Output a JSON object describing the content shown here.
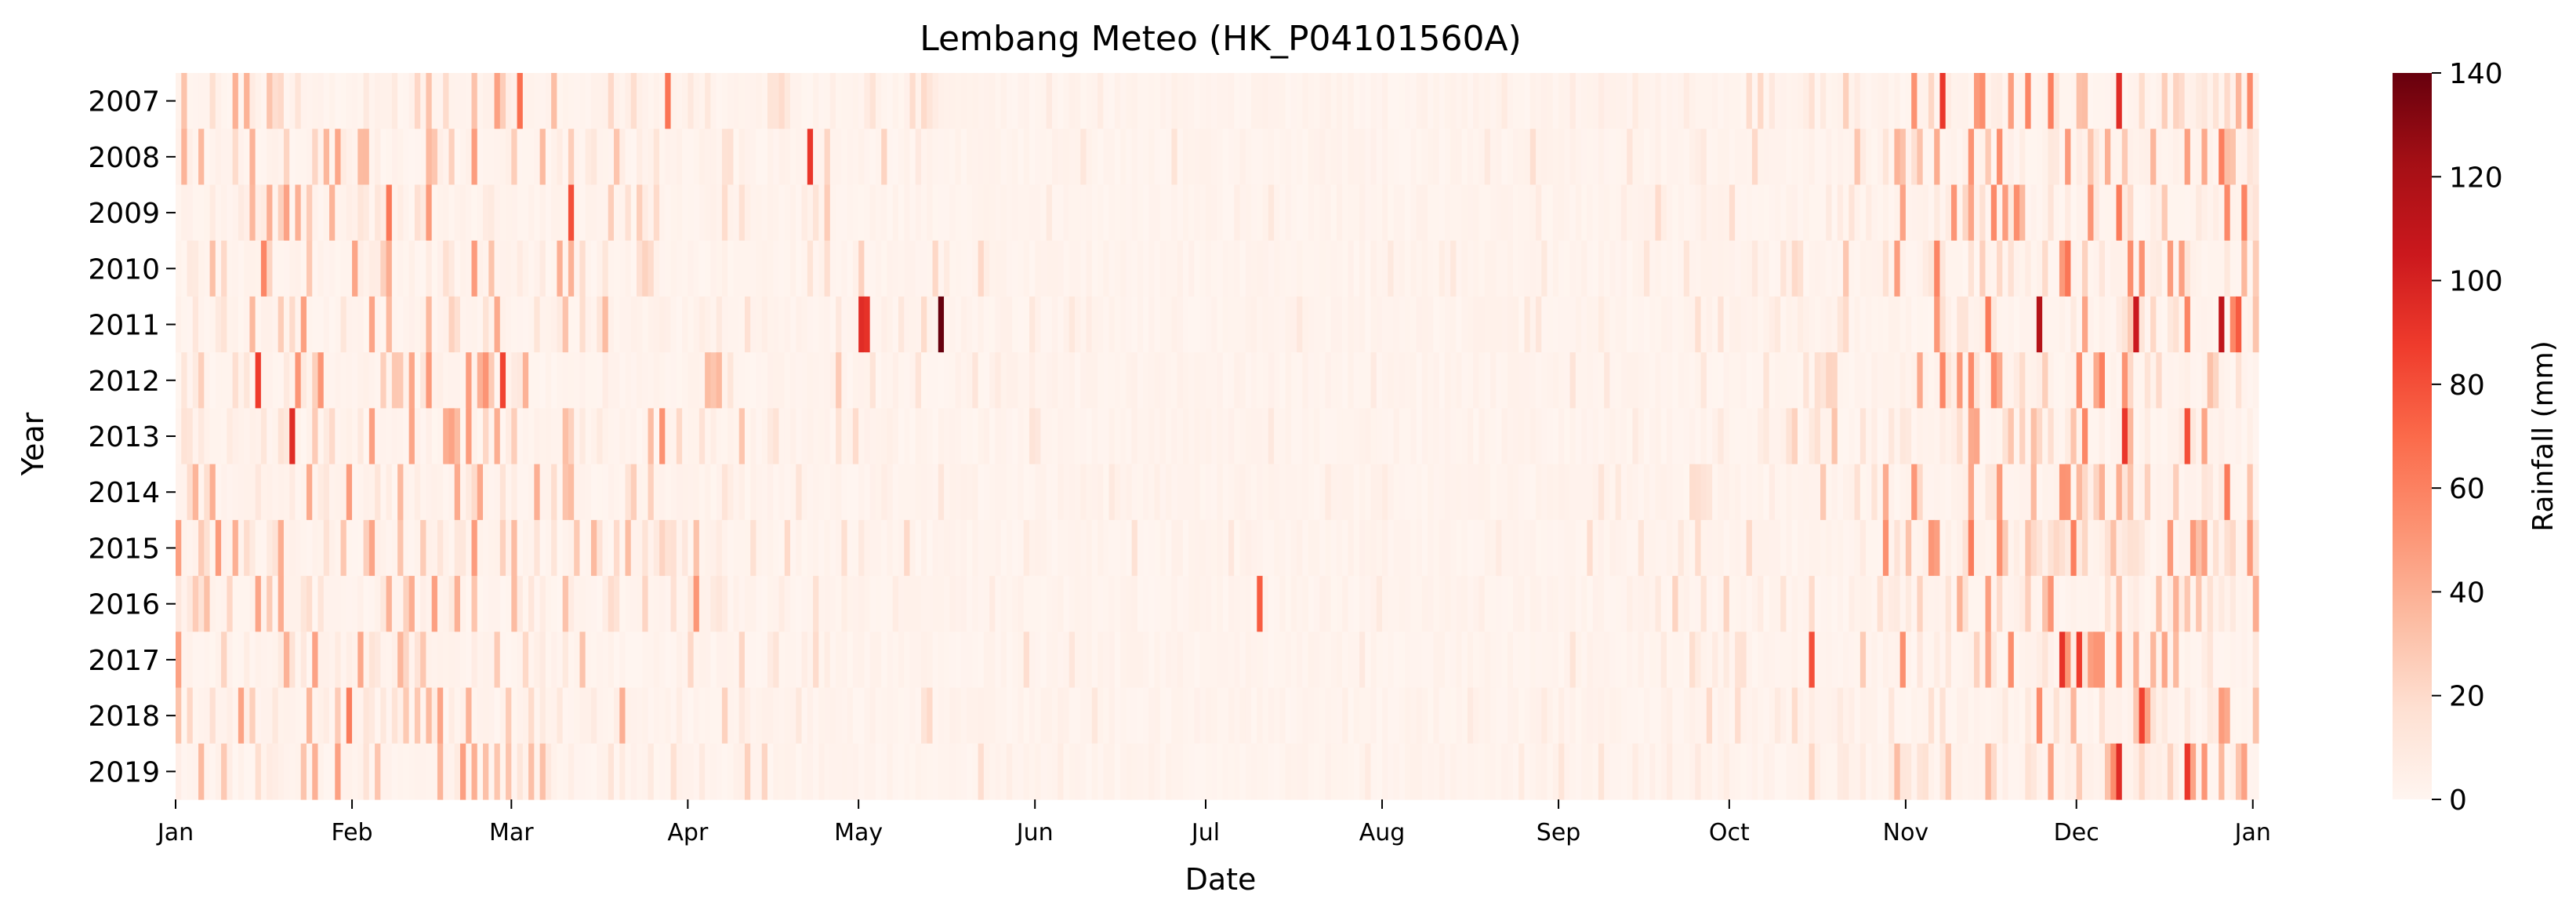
{
  "chart_data": {
    "type": "heatmap",
    "title": "Lembang Meteo (HK_P04101560A)",
    "xlabel": "Date",
    "ylabel": "Year",
    "years": [
      "2007",
      "2008",
      "2009",
      "2010",
      "2011",
      "2012",
      "2013",
      "2014",
      "2015",
      "2016",
      "2017",
      "2018",
      "2019"
    ],
    "x_ticks": [
      "Jan",
      "Feb",
      "Mar",
      "Apr",
      "May",
      "Jun",
      "Jul",
      "Aug",
      "Sep",
      "Oct",
      "Nov",
      "Dec",
      "Jan"
    ],
    "x_tick_days": [
      1,
      32,
      60,
      91,
      121,
      152,
      182,
      213,
      244,
      274,
      305,
      335,
      366
    ],
    "day_range": [
      1,
      366
    ],
    "colorbar": {
      "label": "Rainfall (mm)",
      "range": [
        0,
        140
      ],
      "ticks": [
        "0",
        "20",
        "40",
        "60",
        "80",
        "100",
        "120",
        "140"
      ],
      "colormap": "Reds",
      "colors": [
        "#fff5f0",
        "#fee0d2",
        "#fcbba1",
        "#fc9272",
        "#fb6a4a",
        "#ef3b2c",
        "#cb181d",
        "#a50f15",
        "#67000d"
      ]
    },
    "notable_values": [
      {
        "year": "2011",
        "day": 121,
        "rainfall": 95
      },
      {
        "year": "2011",
        "day": 122,
        "rainfall": 92
      },
      {
        "year": "2011",
        "day": 135,
        "rainfall": 140
      },
      {
        "year": "2011",
        "day": 328,
        "rainfall": 115
      },
      {
        "year": "2011",
        "day": 345,
        "rainfall": 105
      },
      {
        "year": "2011",
        "day": 360,
        "rainfall": 110
      },
      {
        "year": "2013",
        "day": 343,
        "rainfall": 90
      },
      {
        "year": "2013",
        "day": 354,
        "rainfall": 80
      },
      {
        "year": "2009",
        "day": 70,
        "rainfall": 80
      },
      {
        "year": "2007",
        "day": 311,
        "rainfall": 90
      },
      {
        "year": "2007",
        "day": 342,
        "rainfall": 95
      },
      {
        "year": "2008",
        "day": 112,
        "rainfall": 90
      },
      {
        "year": "2012",
        "day": 58,
        "rainfall": 85
      },
      {
        "year": "2016",
        "day": 191,
        "rainfall": 75
      },
      {
        "year": "2017",
        "day": 288,
        "rainfall": 80
      },
      {
        "year": "2018",
        "day": 346,
        "rainfall": 85
      },
      {
        "year": "2019",
        "day": 342,
        "rainfall": 95
      },
      {
        "year": "2019",
        "day": 354,
        "rainfall": 90
      }
    ],
    "wet_season_months": [
      "Jan",
      "Feb",
      "Mar",
      "Apr",
      "May",
      "Nov",
      "Dec"
    ],
    "dry_season_months": [
      "Jun",
      "Jul",
      "Aug",
      "Sep"
    ]
  }
}
